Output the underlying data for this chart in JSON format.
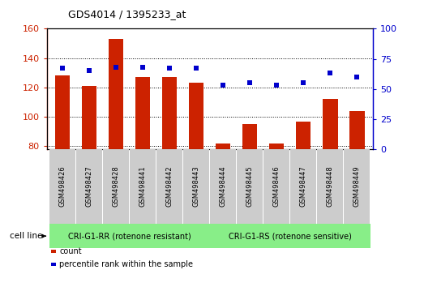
{
  "title": "GDS4014 / 1395233_at",
  "samples": [
    "GSM498426",
    "GSM498427",
    "GSM498428",
    "GSM498441",
    "GSM498442",
    "GSM498443",
    "GSM498444",
    "GSM498445",
    "GSM498446",
    "GSM498447",
    "GSM498448",
    "GSM498449"
  ],
  "counts": [
    128,
    121,
    153,
    127,
    127,
    123,
    82,
    95,
    82,
    97,
    112,
    104
  ],
  "percentile_ranks": [
    67,
    65,
    68,
    68,
    67,
    67,
    53,
    55,
    53,
    55,
    63,
    60
  ],
  "group1_label": "CRI-G1-RR (rotenone resistant)",
  "group2_label": "CRI-G1-RS (rotenone sensitive)",
  "group1_count": 6,
  "group2_count": 6,
  "cell_line_label": "cell line",
  "ylim_left": [
    78,
    160
  ],
  "ylim_right": [
    0,
    100
  ],
  "yticks_left": [
    80,
    100,
    120,
    140,
    160
  ],
  "yticks_right": [
    0,
    25,
    50,
    75,
    100
  ],
  "bar_color": "#CC2200",
  "dot_color": "#0000CC",
  "group_bg_color": "#88EE88",
  "tick_label_bg": "#CCCCCC",
  "legend_count_label": "count",
  "legend_pct_label": "percentile rank within the sample",
  "bar_width": 0.55,
  "fig_width": 5.23,
  "fig_height": 3.54,
  "dpi": 100
}
